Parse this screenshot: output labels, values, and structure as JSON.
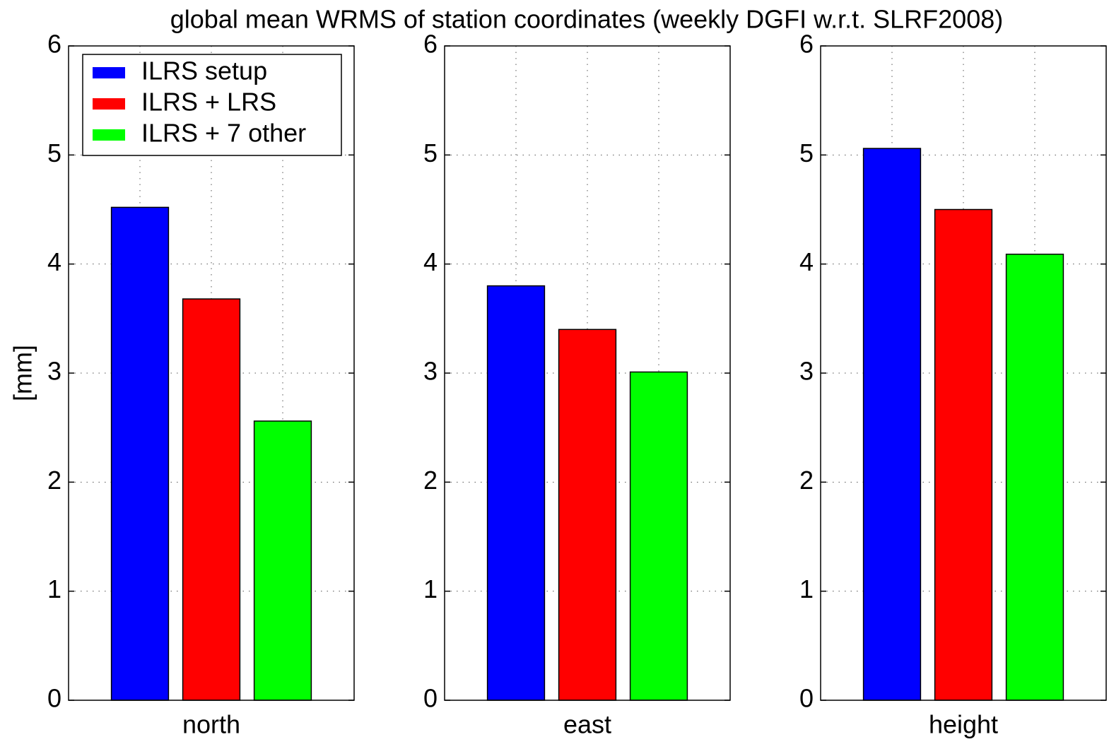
{
  "chart_data": {
    "type": "bar",
    "title": "global mean WRMS of station coordinates (weekly DGFI w.r.t. SLRF2008)",
    "y_label": "[mm]",
    "categories": [
      "north",
      "east",
      "height"
    ],
    "series": [
      {
        "name": "ILRS setup",
        "color": "#0000ff",
        "values": [
          4.52,
          3.8,
          5.06
        ]
      },
      {
        "name": "ILRS + LRS",
        "color": "#ff0000",
        "values": [
          3.68,
          3.4,
          4.5
        ]
      },
      {
        "name": "ILRS + 7 other",
        "color": "#00ff00",
        "values": [
          2.56,
          3.01,
          4.09
        ]
      }
    ],
    "ylim": [
      0,
      6
    ],
    "yticks": [
      0,
      1,
      2,
      3,
      4,
      5,
      6
    ],
    "grid": true,
    "legend": "upper left"
  }
}
